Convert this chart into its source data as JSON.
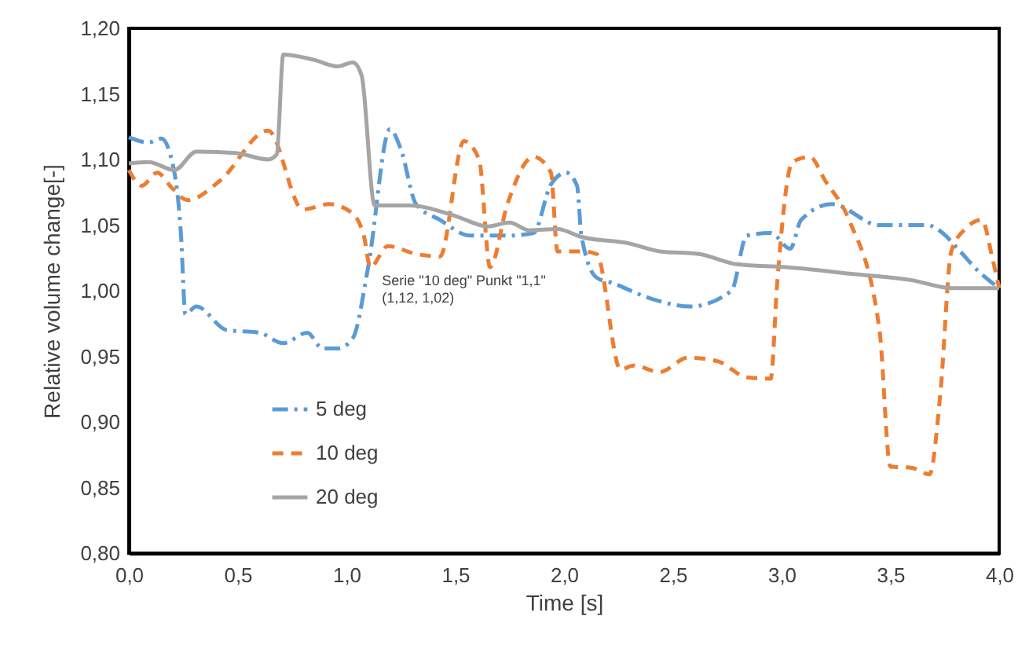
{
  "chart_data": {
    "type": "line",
    "xlabel": "Time [s]",
    "ylabel": "Relative volume change[-]",
    "xlim": [
      0,
      4
    ],
    "ylim": [
      0.8,
      1.2
    ],
    "xticks": [
      {
        "value": 0,
        "label": "0,0"
      },
      {
        "value": 0.5,
        "label": "0,5"
      },
      {
        "value": 1,
        "label": "1,0"
      },
      {
        "value": 1.5,
        "label": "1,5"
      },
      {
        "value": 2,
        "label": "2,0"
      },
      {
        "value": 2.5,
        "label": "2,5"
      },
      {
        "value": 3,
        "label": "3,0"
      },
      {
        "value": 3.5,
        "label": "3,5"
      },
      {
        "value": 4,
        "label": "4,0"
      }
    ],
    "yticks": [
      {
        "value": 0.8,
        "label": "0,80"
      },
      {
        "value": 0.85,
        "label": "0,85"
      },
      {
        "value": 0.9,
        "label": "0,90"
      },
      {
        "value": 0.95,
        "label": "0,95"
      },
      {
        "value": 1.0,
        "label": "1,00"
      },
      {
        "value": 1.05,
        "label": "1,05"
      },
      {
        "value": 1.1,
        "label": "1,10"
      },
      {
        "value": 1.15,
        "label": "1,15"
      },
      {
        "value": 1.2,
        "label": "1,20"
      }
    ],
    "grid": false,
    "legend": "bottom left",
    "marker": "none",
    "annotations": [
      {
        "text": "Serie \"10 deg\" Punkt \"1,1\"\n(1,12, 1,02)",
        "x": 1.12,
        "y": 1.02
      }
    ],
    "series": [
      {
        "name": "5 deg",
        "color": "#5b9bd5",
        "line_style": "dashdot",
        "x": [
          0,
          0.09,
          0.15,
          0.19,
          0.24,
          0.26,
          0.31,
          0.45,
          0.6,
          0.71,
          0.82,
          0.89,
          0.96,
          1.03,
          1.1,
          1.2,
          1.25,
          1.32,
          1.43,
          1.57,
          1.75,
          1.86,
          1.94,
          2.01,
          2.06,
          2.08,
          2.15,
          2.22,
          2.4,
          2.58,
          2.77,
          2.84,
          2.95,
          3.04,
          3.09,
          3.23,
          3.45,
          3.67,
          3.74,
          3.81,
          3.91,
          4.0
        ],
        "values": [
          1.117,
          1.113,
          1.116,
          1.104,
          1.042,
          0.982,
          0.988,
          0.97,
          0.968,
          0.96,
          0.968,
          0.956,
          0.956,
          0.964,
          1.018,
          1.123,
          1.108,
          1.066,
          1.054,
          1.042,
          1.042,
          1.044,
          1.081,
          1.09,
          1.08,
          1.042,
          1.01,
          1.006,
          0.994,
          0.988,
          1.0,
          1.042,
          1.044,
          1.032,
          1.054,
          1.066,
          1.05,
          1.05,
          1.044,
          1.032,
          1.014,
          1.002
        ]
      },
      {
        "name": "10 deg",
        "color": "#ed7d31",
        "line_style": "dashed",
        "x": [
          0,
          0.06,
          0.13,
          0.2,
          0.27,
          0.42,
          0.64,
          0.8,
          0.92,
          1.02,
          1.08,
          1.11,
          1.19,
          1.32,
          1.43,
          1.54,
          1.61,
          1.66,
          1.74,
          1.86,
          1.94,
          1.97,
          2.08,
          2.15,
          2.26,
          2.32,
          2.44,
          2.57,
          2.71,
          2.84,
          2.95,
          2.98,
          3.05,
          3.13,
          3.2,
          3.31,
          3.45,
          3.5,
          3.6,
          3.68,
          3.73,
          3.78,
          3.85,
          3.92,
          3.97,
          4.0
        ],
        "values": [
          1.092,
          1.08,
          1.09,
          1.078,
          1.069,
          1.084,
          1.122,
          1.062,
          1.066,
          1.06,
          1.042,
          1.018,
          1.034,
          1.028,
          1.026,
          1.114,
          1.1,
          1.018,
          1.066,
          1.102,
          1.09,
          1.03,
          1.03,
          1.028,
          0.94,
          0.943,
          0.938,
          0.949,
          0.946,
          0.934,
          0.933,
          1.006,
          1.098,
          1.102,
          1.084,
          1.054,
          0.97,
          0.866,
          0.865,
          0.86,
          0.922,
          1.03,
          1.048,
          1.054,
          1.024,
          1.002
        ]
      },
      {
        "name": "20 deg",
        "color": "#a5a5a5",
        "line_style": "solid",
        "x": [
          0,
          0.09,
          0.21,
          0.31,
          0.49,
          0.64,
          0.68,
          0.71,
          0.85,
          0.96,
          1.03,
          1.07,
          1.13,
          1.29,
          1.5,
          1.65,
          1.75,
          1.84,
          1.97,
          2.08,
          2.3,
          2.44,
          2.62,
          2.8,
          3.02,
          3.31,
          3.6,
          3.78,
          4.0
        ],
        "values": [
          1.097,
          1.098,
          1.092,
          1.106,
          1.105,
          1.1,
          1.104,
          1.18,
          1.176,
          1.171,
          1.174,
          1.164,
          1.065,
          1.065,
          1.057,
          1.049,
          1.052,
          1.046,
          1.047,
          1.041,
          1.036,
          1.03,
          1.028,
          1.02,
          1.018,
          1.013,
          1.008,
          1.002,
          1.002
        ]
      }
    ]
  }
}
